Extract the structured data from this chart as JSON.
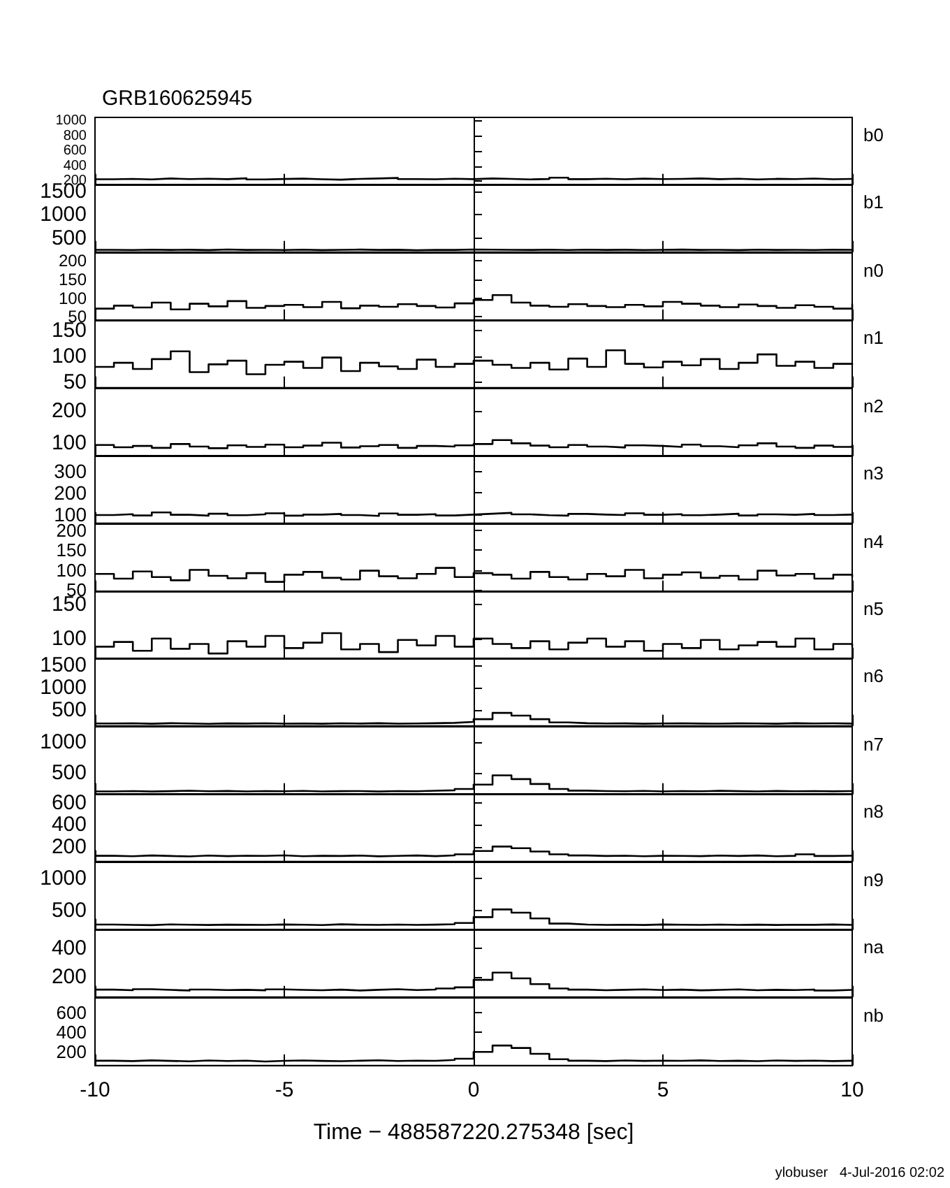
{
  "chart_data": [
    {
      "type": "step",
      "title": "GRB160625945",
      "annotations": [
        "b0"
      ],
      "x": [
        -10,
        -9.5,
        -9,
        -8.5,
        -8,
        -7.5,
        -7,
        -6.5,
        -6,
        -5.5,
        -5,
        -4.5,
        -4,
        -3.5,
        -3,
        -2.5,
        -2,
        -1.5,
        -1,
        -0.5,
        0,
        0.5,
        1,
        1.5,
        2,
        2.5,
        3,
        3.5,
        4,
        4.5,
        5,
        5.5,
        6,
        6.5,
        7,
        7.5,
        8,
        8.5,
        9,
        9.5,
        10
      ],
      "xlim": [
        -10,
        10
      ],
      "xticks": [
        -10,
        -5,
        0,
        5,
        10
      ],
      "ylim": [
        150,
        1050
      ],
      "yticks": [
        200,
        400,
        600,
        800,
        1000
      ],
      "tick_labels": "y",
      "series": [
        {
          "color": "#000000",
          "values": [
            228,
            232,
            225,
            238,
            230,
            235,
            229,
            240,
            226,
            231,
            236,
            228,
            222,
            233,
            238,
            245,
            230,
            227,
            235,
            229,
            238,
            233,
            226,
            231,
            248,
            229,
            234,
            227,
            236,
            230,
            232,
            238,
            229,
            235,
            226,
            233,
            230,
            237,
            228,
            232,
            229
          ]
        }
      ]
    },
    {
      "type": "step",
      "annotations": [
        "b1"
      ],
      "x": [
        -10,
        -9.5,
        -9,
        -8.5,
        -8,
        -7.5,
        -7,
        -6.5,
        -6,
        -5.5,
        -5,
        -4.5,
        -4,
        -3.5,
        -3,
        -2.5,
        -2,
        -1.5,
        -1,
        -0.5,
        0,
        0.5,
        1,
        1.5,
        2,
        2.5,
        3,
        3.5,
        4,
        4.5,
        5,
        5.5,
        6,
        6.5,
        7,
        7.5,
        8,
        8.5,
        9,
        9.5,
        10
      ],
      "xlim": [
        -10,
        10
      ],
      "xticks": [
        -10,
        -5,
        0,
        5,
        10
      ],
      "ylim": [
        200,
        1650
      ],
      "yticks": [
        500,
        1000,
        1500
      ],
      "tick_labels": "y",
      "series": [
        {
          "color": "#000000",
          "values": [
            250,
            246,
            255,
            248,
            252,
            244,
            258,
            249,
            251,
            247,
            253,
            245,
            250,
            256,
            248,
            252,
            243,
            251,
            249,
            257,
            254,
            250,
            248,
            253,
            246,
            255,
            249,
            252,
            247,
            250,
            256,
            248,
            251,
            245,
            253,
            249,
            250,
            247,
            254,
            251,
            248
          ]
        }
      ]
    },
    {
      "type": "step",
      "annotations": [
        "n0"
      ],
      "x": [
        -10,
        -9.5,
        -9,
        -8.5,
        -8,
        -7.5,
        -7,
        -6.5,
        -6,
        -5.5,
        -5,
        -4.5,
        -4,
        -3.5,
        -3,
        -2.5,
        -2,
        -1.5,
        -1,
        -0.5,
        0,
        0.5,
        1,
        1.5,
        2,
        2.5,
        3,
        3.5,
        4,
        4.5,
        5,
        5.5,
        6,
        6.5,
        7,
        7.5,
        8,
        8.5,
        9,
        9.5,
        10
      ],
      "xlim": [
        -10,
        10
      ],
      "xticks": [
        -10,
        -5,
        0,
        5,
        10
      ],
      "ylim": [
        40,
        220
      ],
      "yticks": [
        50,
        100,
        150,
        200
      ],
      "tick_labels": "y",
      "series": [
        {
          "color": "#000000",
          "values": [
            72,
            80,
            75,
            88,
            70,
            85,
            78,
            92,
            74,
            79,
            82,
            76,
            90,
            73,
            80,
            77,
            84,
            79,
            75,
            86,
            95,
            108,
            88,
            80,
            77,
            84,
            79,
            76,
            82,
            78,
            90,
            85,
            80,
            76,
            83,
            79,
            74,
            81,
            77,
            72,
            85
          ]
        }
      ]
    },
    {
      "type": "step",
      "annotations": [
        "n1"
      ],
      "x": [
        -10,
        -9.5,
        -9,
        -8.5,
        -8,
        -7.5,
        -7,
        -6.5,
        -6,
        -5.5,
        -5,
        -4.5,
        -4,
        -3.5,
        -3,
        -2.5,
        -2,
        -1.5,
        -1,
        -0.5,
        0,
        0.5,
        1,
        1.5,
        2,
        2.5,
        3,
        3.5,
        4,
        4.5,
        5,
        5.5,
        6,
        6.5,
        7,
        7.5,
        8,
        8.5,
        9,
        9.5,
        10
      ],
      "xlim": [
        -10,
        10
      ],
      "xticks": [
        -10,
        -5,
        0,
        5,
        10
      ],
      "ylim": [
        40,
        170
      ],
      "yticks": [
        50,
        100,
        150
      ],
      "tick_labels": "y",
      "series": [
        {
          "color": "#000000",
          "values": [
            80,
            88,
            76,
            95,
            110,
            70,
            85,
            92,
            66,
            84,
            90,
            78,
            98,
            72,
            88,
            81,
            76,
            94,
            80,
            86,
            92,
            84,
            78,
            88,
            75,
            96,
            80,
            112,
            86,
            79,
            90,
            83,
            95,
            76,
            88,
            104,
            82,
            90,
            78,
            86,
            84
          ]
        }
      ]
    },
    {
      "type": "step",
      "annotations": [
        "n2"
      ],
      "x": [
        -10,
        -9.5,
        -9,
        -8.5,
        -8,
        -7.5,
        -7,
        -6.5,
        -6,
        -5.5,
        -5,
        -4.5,
        -4,
        -3.5,
        -3,
        -2.5,
        -2,
        -1.5,
        -1,
        -0.5,
        0,
        0.5,
        1,
        1.5,
        2,
        2.5,
        3,
        3.5,
        4,
        4.5,
        5,
        5.5,
        6,
        6.5,
        7,
        7.5,
        8,
        8.5,
        9,
        9.5,
        10
      ],
      "xlim": [
        -10,
        10
      ],
      "xticks": [
        -10,
        -5,
        0,
        5,
        10
      ],
      "ylim": [
        60,
        270
      ],
      "yticks": [
        100,
        200
      ],
      "tick_labels": "y",
      "series": [
        {
          "color": "#000000",
          "values": [
            95,
            88,
            92,
            86,
            98,
            90,
            85,
            94,
            89,
            96,
            88,
            93,
            102,
            87,
            91,
            95,
            86,
            92,
            90,
            94,
            98,
            110,
            100,
            93,
            88,
            95,
            90,
            87,
            94,
            92,
            89,
            96,
            91,
            88,
            94,
            100,
            90,
            86,
            93,
            89,
            95
          ]
        }
      ]
    },
    {
      "type": "step",
      "annotations": [
        "n3"
      ],
      "x": [
        -10,
        -9.5,
        -9,
        -8.5,
        -8,
        -7.5,
        -7,
        -6.5,
        -6,
        -5.5,
        -5,
        -4.5,
        -4,
        -3.5,
        -3,
        -2.5,
        -2,
        -1.5,
        -1,
        -0.5,
        0,
        0.5,
        1,
        1.5,
        2,
        2.5,
        3,
        3.5,
        4,
        4.5,
        5,
        5.5,
        6,
        6.5,
        7,
        7.5,
        8,
        8.5,
        9,
        9.5,
        10
      ],
      "xlim": [
        -10,
        10
      ],
      "xticks": [
        -10,
        -5,
        0,
        5,
        10
      ],
      "ylim": [
        60,
        370
      ],
      "yticks": [
        100,
        200,
        300
      ],
      "tick_labels": "y",
      "series": [
        {
          "color": "#000000",
          "values": [
            98,
            102,
            96,
            110,
            99,
            95,
            104,
            97,
            101,
            106,
            95,
            100,
            103,
            98,
            94,
            105,
            99,
            102,
            96,
            100,
            104,
            108,
            101,
            97,
            95,
            103,
            100,
            98,
            106,
            99,
            102,
            97,
            100,
            104,
            96,
            101,
            99,
            103,
            98,
            100,
            97
          ]
        }
      ]
    },
    {
      "type": "step",
      "annotations": [
        "n4"
      ],
      "x": [
        -10,
        -9.5,
        -9,
        -8.5,
        -8,
        -7.5,
        -7,
        -6.5,
        -6,
        -5.5,
        -5,
        -4.5,
        -4,
        -3.5,
        -3,
        -2.5,
        -2,
        -1.5,
        -1,
        -0.5,
        0,
        0.5,
        1,
        1.5,
        2,
        2.5,
        3,
        3.5,
        4,
        4.5,
        5,
        5.5,
        6,
        6.5,
        7,
        7.5,
        8,
        8.5,
        9,
        9.5,
        10
      ],
      "xlim": [
        -10,
        10
      ],
      "xticks": [
        -10,
        -5,
        0,
        5,
        10
      ],
      "ylim": [
        45,
        215
      ],
      "yticks": [
        50,
        100,
        150,
        200
      ],
      "tick_labels": "y",
      "series": [
        {
          "color": "#000000",
          "values": [
            90,
            78,
            96,
            82,
            74,
            100,
            85,
            79,
            92,
            70,
            88,
            95,
            80,
            76,
            98,
            84,
            79,
            90,
            105,
            82,
            92,
            88,
            78,
            95,
            82,
            76,
            90,
            84,
            100,
            79,
            88,
            94,
            80,
            85,
            76,
            98,
            86,
            90,
            78,
            88,
            82
          ]
        }
      ]
    },
    {
      "type": "step",
      "annotations": [
        "n5"
      ],
      "x": [
        -10,
        -9.5,
        -9,
        -8.5,
        -8,
        -7.5,
        -7,
        -6.5,
        -6,
        -5.5,
        -5,
        -4.5,
        -4,
        -3.5,
        -3,
        -2.5,
        -2,
        -1.5,
        -1,
        -0.5,
        0,
        0.5,
        1,
        1.5,
        2,
        2.5,
        3,
        3.5,
        4,
        4.5,
        5,
        5.5,
        6,
        6.5,
        7,
        7.5,
        8,
        8.5,
        9,
        9.5,
        10
      ],
      "xlim": [
        -10,
        10
      ],
      "xticks": [
        -10,
        -5,
        0,
        5,
        10
      ],
      "ylim": [
        70,
        170
      ],
      "yticks": [
        100,
        150
      ],
      "tick_labels": "y",
      "series": [
        {
          "color": "#000000",
          "values": [
            88,
            95,
            82,
            100,
            85,
            92,
            78,
            96,
            88,
            104,
            86,
            94,
            108,
            84,
            92,
            80,
            98,
            90,
            104,
            88,
            100,
            92,
            86,
            96,
            84,
            94,
            100,
            88,
            96,
            82,
            92,
            86,
            98,
            84,
            90,
            95,
            88,
            100,
            84,
            92,
            88
          ]
        }
      ]
    },
    {
      "type": "step",
      "annotations": [
        "n6"
      ],
      "x": [
        -10,
        -9.5,
        -9,
        -8.5,
        -8,
        -7.5,
        -7,
        -6.5,
        -6,
        -5.5,
        -5,
        -4.5,
        -4,
        -3.5,
        -3,
        -2.5,
        -2,
        -1.5,
        -1,
        -0.5,
        0,
        0.5,
        1,
        1.5,
        2,
        2.5,
        3,
        3.5,
        4,
        4.5,
        5,
        5.5,
        6,
        6.5,
        7,
        7.5,
        8,
        8.5,
        9,
        9.5,
        10
      ],
      "xlim": [
        -10,
        10
      ],
      "xticks": [
        -10,
        -5,
        0,
        5,
        10
      ],
      "ylim": [
        150,
        1650
      ],
      "yticks": [
        500,
        1000,
        1500
      ],
      "tick_labels": "y",
      "series": [
        {
          "color": "#000000",
          "values": [
            205,
            210,
            200,
            212,
            206,
            198,
            208,
            204,
            210,
            202,
            206,
            200,
            209,
            204,
            211,
            203,
            207,
            212,
            220,
            240,
            300,
            440,
            380,
            300,
            230,
            212,
            205,
            208,
            200,
            206,
            210,
            204,
            202,
            208,
            206,
            200,
            211,
            205,
            209,
            204,
            207
          ]
        }
      ]
    },
    {
      "type": "step",
      "annotations": [
        "n7"
      ],
      "x": [
        -10,
        -9.5,
        -9,
        -8.5,
        -8,
        -7.5,
        -7,
        -6.5,
        -6,
        -5.5,
        -5,
        -4.5,
        -4,
        -3.5,
        -3,
        -2.5,
        -2,
        -1.5,
        -1,
        -0.5,
        0,
        0.5,
        1,
        1.5,
        2,
        2.5,
        3,
        3.5,
        4,
        4.5,
        5,
        5.5,
        6,
        6.5,
        7,
        7.5,
        8,
        8.5,
        9,
        9.5,
        10
      ],
      "xlim": [
        -10,
        10
      ],
      "xticks": [
        -10,
        -5,
        0,
        5,
        10
      ],
      "ylim": [
        150,
        1250
      ],
      "yticks": [
        500,
        1000
      ],
      "tick_labels": "y",
      "series": [
        {
          "color": "#000000",
          "values": [
            200,
            206,
            198,
            204,
            210,
            202,
            207,
            199,
            205,
            203,
            208,
            200,
            204,
            206,
            198,
            205,
            203,
            210,
            218,
            240,
            310,
            460,
            400,
            320,
            240,
            212,
            206,
            203,
            208,
            200,
            205,
            202,
            209,
            204,
            200,
            207,
            203,
            206,
            201,
            205,
            203
          ]
        }
      ]
    },
    {
      "type": "step",
      "annotations": [
        "n8"
      ],
      "x": [
        -10,
        -9.5,
        -9,
        -8.5,
        -8,
        -7.5,
        -7,
        -6.5,
        -6,
        -5.5,
        -5,
        -4.5,
        -4,
        -3.5,
        -3,
        -2.5,
        -2,
        -1.5,
        -1,
        -0.5,
        0,
        0.5,
        1,
        1.5,
        2,
        2.5,
        3,
        3.5,
        4,
        4.5,
        5,
        5.5,
        6,
        6.5,
        7,
        7.5,
        8,
        8.5,
        9,
        9.5,
        10
      ],
      "xlim": [
        -10,
        10
      ],
      "xticks": [
        -10,
        -5,
        0,
        5,
        10
      ],
      "ylim": [
        70,
        680
      ],
      "yticks": [
        200,
        400,
        600
      ],
      "tick_labels": "y",
      "series": [
        {
          "color": "#000000",
          "values": [
            122,
            118,
            125,
            120,
            116,
            124,
            119,
            123,
            121,
            126,
            118,
            122,
            120,
            124,
            117,
            121,
            125,
            119,
            126,
            135,
            165,
            205,
            190,
            160,
            135,
            125,
            120,
            123,
            118,
            122,
            121,
            119,
            124,
            120,
            125,
            118,
            122,
            135,
            120,
            123,
            120
          ]
        }
      ]
    },
    {
      "type": "step",
      "annotations": [
        "n9"
      ],
      "x": [
        -10,
        -9.5,
        -9,
        -8.5,
        -8,
        -7.5,
        -7,
        -6.5,
        -6,
        -5.5,
        -5,
        -4.5,
        -4,
        -3.5,
        -3,
        -2.5,
        -2,
        -1.5,
        -1,
        -0.5,
        0,
        0.5,
        1,
        1.5,
        2,
        2.5,
        3,
        3.5,
        4,
        4.5,
        5,
        5.5,
        6,
        6.5,
        7,
        7.5,
        8,
        8.5,
        9,
        9.5,
        10
      ],
      "xlim": [
        -10,
        10
      ],
      "xticks": [
        -10,
        -5,
        0,
        5,
        10
      ],
      "ylim": [
        200,
        1250
      ],
      "yticks": [
        500,
        1000
      ],
      "tick_labels": "y",
      "series": [
        {
          "color": "#000000",
          "values": [
            285,
            280,
            276,
            288,
            282,
            278,
            284,
            281,
            279,
            286,
            283,
            277,
            289,
            282,
            280,
            285,
            279,
            284,
            290,
            310,
            400,
            520,
            470,
            380,
            300,
            285,
            280,
            283,
            278,
            286,
            282,
            279,
            285,
            280,
            284,
            278,
            283,
            281,
            286,
            280,
            284
          ]
        }
      ]
    },
    {
      "type": "step",
      "annotations": [
        "na"
      ],
      "x": [
        -10,
        -9.5,
        -9,
        -8.5,
        -8,
        -7.5,
        -7,
        -6.5,
        -6,
        -5.5,
        -5,
        -4.5,
        -4,
        -3.5,
        -3,
        -2.5,
        -2,
        -1.5,
        -1,
        -0.5,
        0,
        0.5,
        1,
        1.5,
        2,
        2.5,
        3,
        3.5,
        4,
        4.5,
        5,
        5.5,
        6,
        6.5,
        7,
        7.5,
        8,
        8.5,
        9,
        9.5,
        10
      ],
      "xlim": [
        -10,
        10
      ],
      "xticks": [
        -10,
        -5,
        0,
        5,
        10
      ],
      "ylim": [
        60,
        530
      ],
      "yticks": [
        200,
        400
      ],
      "tick_labels": "y",
      "series": [
        {
          "color": "#000000",
          "values": [
            112,
            108,
            115,
            110,
            106,
            113,
            109,
            111,
            107,
            114,
            110,
            108,
            112,
            106,
            111,
            115,
            109,
            113,
            120,
            128,
            180,
            230,
            190,
            150,
            120,
            112,
            108,
            111,
            114,
            109,
            112,
            107,
            110,
            114,
            108,
            111,
            109,
            113,
            106,
            110,
            112
          ]
        }
      ]
    },
    {
      "type": "step",
      "annotations": [
        "nb",
        "ylobuser   4-Jul-2016 02:02"
      ],
      "xlabel": "Time − 488587220.275348 [sec]",
      "x": [
        -10,
        -9.5,
        -9,
        -8.5,
        -8,
        -7.5,
        -7,
        -6.5,
        -6,
        -5.5,
        -5,
        -4.5,
        -4,
        -3.5,
        -3,
        -2.5,
        -2,
        -1.5,
        -1,
        -0.5,
        0,
        0.5,
        1,
        1.5,
        2,
        2.5,
        3,
        3.5,
        4,
        4.5,
        5,
        5.5,
        6,
        6.5,
        7,
        7.5,
        8,
        8.5,
        9,
        9.5,
        10
      ],
      "xlim": [
        -10,
        10
      ],
      "xticks": [
        -10,
        -5,
        0,
        5,
        10
      ],
      "ylim": [
        60,
        750
      ],
      "yticks": [
        200,
        400,
        600
      ],
      "series": [
        {
          "color": "#000000",
          "values": [
            110,
            106,
            113,
            108,
            104,
            112,
            107,
            111,
            102,
            109,
            112,
            108,
            105,
            110,
            114,
            107,
            111,
            109,
            118,
            130,
            200,
            265,
            240,
            180,
            125,
            110,
            106,
            112,
            108,
            111,
            109,
            113,
            107,
            110,
            105,
            112,
            108,
            111,
            106,
            110,
            108
          ]
        }
      ]
    }
  ]
}
